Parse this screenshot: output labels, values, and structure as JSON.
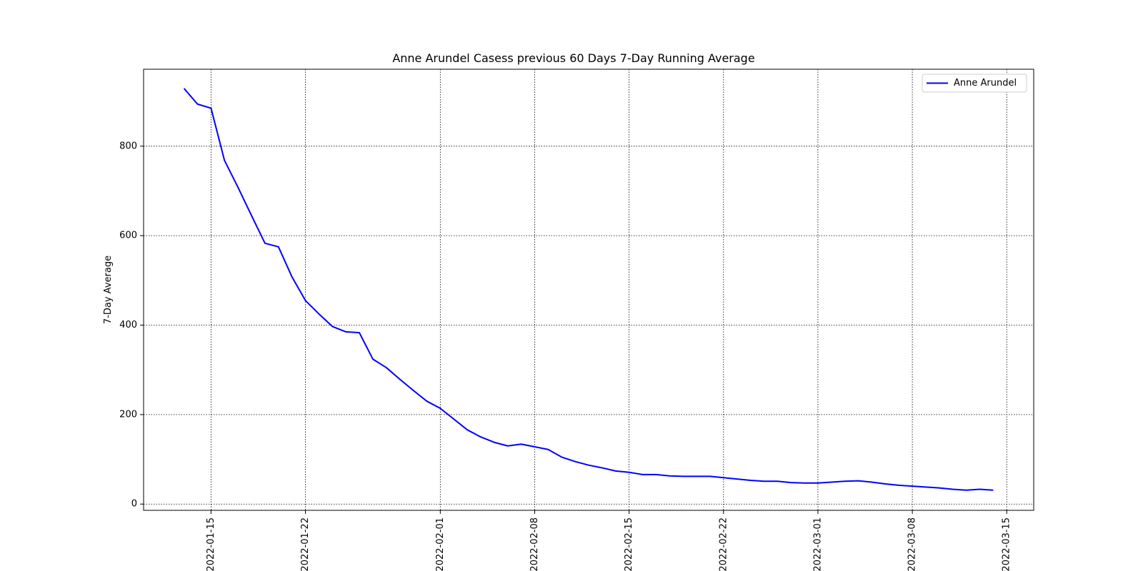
{
  "chart_data": {
    "type": "line",
    "title": "Anne Arundel Casess previous 60 Days 7-Day Running Average",
    "xlabel": "",
    "ylabel": "7-Day Average",
    "x_type": "date",
    "xlim": [
      "2022-01-10",
      "2022-03-17"
    ],
    "ylim": [
      -14,
      972
    ],
    "x_ticks": [
      "2022-01-15",
      "2022-01-22",
      "2022-02-01",
      "2022-02-08",
      "2022-02-15",
      "2022-02-22",
      "2022-03-01",
      "2022-03-08",
      "2022-03-15"
    ],
    "y_ticks": [
      0,
      200,
      400,
      600,
      800
    ],
    "grid": true,
    "grid_style": "dotted",
    "legend_position": "top-right",
    "series": [
      {
        "name": "Anne Arundel",
        "color": "#0000ff",
        "points": [
          [
            "2022-01-13",
            929
          ],
          [
            "2022-01-14",
            894
          ],
          [
            "2022-01-15",
            885
          ],
          [
            "2022-01-16",
            768
          ],
          [
            "2022-01-17",
            708
          ],
          [
            "2022-01-18",
            645
          ],
          [
            "2022-01-19",
            583
          ],
          [
            "2022-01-20",
            575
          ],
          [
            "2022-01-21",
            508
          ],
          [
            "2022-01-22",
            455
          ],
          [
            "2022-01-23",
            425
          ],
          [
            "2022-01-24",
            397
          ],
          [
            "2022-01-25",
            385
          ],
          [
            "2022-01-26",
            383
          ],
          [
            "2022-01-27",
            324
          ],
          [
            "2022-01-28",
            305
          ],
          [
            "2022-01-29",
            279
          ],
          [
            "2022-01-30",
            254
          ],
          [
            "2022-01-31",
            230
          ],
          [
            "2022-02-01",
            214
          ],
          [
            "2022-02-02",
            190
          ],
          [
            "2022-02-03",
            166
          ],
          [
            "2022-02-04",
            150
          ],
          [
            "2022-02-05",
            138
          ],
          [
            "2022-02-06",
            130
          ],
          [
            "2022-02-07",
            134
          ],
          [
            "2022-02-08",
            128
          ],
          [
            "2022-02-09",
            122
          ],
          [
            "2022-02-10",
            105
          ],
          [
            "2022-02-11",
            95
          ],
          [
            "2022-02-12",
            87
          ],
          [
            "2022-02-13",
            81
          ],
          [
            "2022-02-14",
            74
          ],
          [
            "2022-02-15",
            71
          ],
          [
            "2022-02-16",
            66
          ],
          [
            "2022-02-17",
            66
          ],
          [
            "2022-02-18",
            63
          ],
          [
            "2022-02-19",
            62
          ],
          [
            "2022-02-20",
            62
          ],
          [
            "2022-02-21",
            62
          ],
          [
            "2022-02-22",
            59
          ],
          [
            "2022-02-23",
            56
          ],
          [
            "2022-02-24",
            53
          ],
          [
            "2022-02-25",
            51
          ],
          [
            "2022-02-26",
            51
          ],
          [
            "2022-02-27",
            48
          ],
          [
            "2022-02-28",
            47
          ],
          [
            "2022-03-01",
            47
          ],
          [
            "2022-03-02",
            49
          ],
          [
            "2022-03-03",
            51
          ],
          [
            "2022-03-04",
            52
          ],
          [
            "2022-03-05",
            49
          ],
          [
            "2022-03-06",
            45
          ],
          [
            "2022-03-07",
            42
          ],
          [
            "2022-03-08",
            40
          ],
          [
            "2022-03-09",
            38
          ],
          [
            "2022-03-10",
            36
          ],
          [
            "2022-03-11",
            33
          ],
          [
            "2022-03-12",
            31
          ],
          [
            "2022-03-13",
            33
          ],
          [
            "2022-03-14",
            31
          ]
        ]
      }
    ]
  }
}
